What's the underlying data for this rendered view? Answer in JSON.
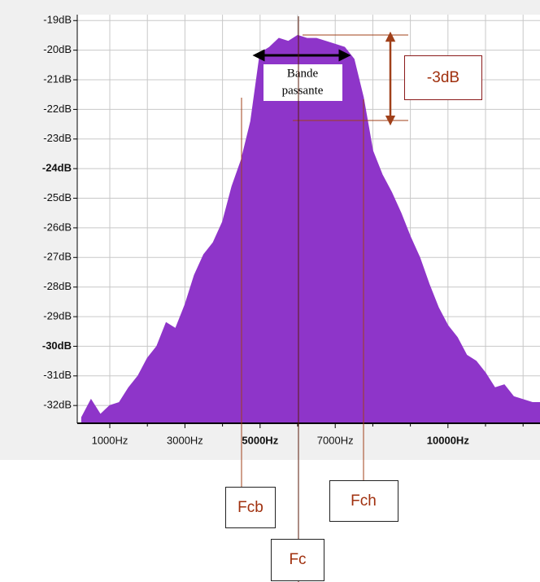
{
  "chart_data": {
    "type": "area",
    "color": "#8e35c9",
    "x": [
      250,
      500,
      750,
      1000,
      1250,
      1500,
      1750,
      2000,
      2250,
      2500,
      2750,
      3000,
      3250,
      3500,
      3750,
      4000,
      4250,
      4500,
      4750,
      5000,
      5250,
      5500,
      5750,
      6000,
      6250,
      6500,
      6750,
      7000,
      7250,
      7500,
      7750,
      8000,
      8250,
      8500,
      8750,
      9000,
      9250,
      9500,
      9750,
      10000,
      10250,
      10500,
      10750,
      11000,
      11250,
      11500,
      11750,
      12000,
      12250
    ],
    "values": [
      -32.4,
      -31.8,
      -32.3,
      -32.0,
      -31.9,
      -31.4,
      -31.0,
      -30.4,
      -30.0,
      -29.2,
      -29.4,
      -28.6,
      -27.6,
      -26.9,
      -26.5,
      -25.8,
      -24.6,
      -23.7,
      -22.4,
      -20.1,
      -19.9,
      -19.6,
      -19.7,
      -19.5,
      -19.6,
      -19.6,
      -19.7,
      -19.8,
      -19.9,
      -20.3,
      -21.6,
      -23.4,
      -24.2,
      -24.8,
      -25.5,
      -26.3,
      -27.0,
      -27.9,
      -28.7,
      -29.3,
      -29.7,
      -30.3,
      -30.5,
      -30.9,
      -31.4,
      -31.3,
      -31.7,
      -31.8,
      -31.9
    ],
    "xlim": [
      134,
      12450
    ],
    "ylim": [
      -32.6,
      -18.8
    ],
    "xticks": [
      {
        "value": 1000,
        "label": "1000Hz"
      },
      {
        "value": 3000,
        "label": "3000Hz"
      },
      {
        "value": 5000,
        "label": "5000Hz",
        "bold": true
      },
      {
        "value": 7000,
        "label": "7000Hz"
      },
      {
        "value": 10000,
        "label": "10000Hz",
        "bold": true
      }
    ],
    "minor_xticks": [
      2000,
      4000,
      6000,
      8000,
      9000,
      11000,
      12000
    ],
    "yticks": [
      {
        "value": -19,
        "label": "-19dB"
      },
      {
        "value": -20,
        "label": "-20dB"
      },
      {
        "value": -21,
        "label": "-21dB"
      },
      {
        "value": -22,
        "label": "-22dB"
      },
      {
        "value": -23,
        "label": "-23dB"
      },
      {
        "value": -24,
        "label": "-24dB",
        "bold": true
      },
      {
        "value": -25,
        "label": "-25dB"
      },
      {
        "value": -26,
        "label": "-26dB"
      },
      {
        "value": -27,
        "label": "-27dB"
      },
      {
        "value": -28,
        "label": "-28dB"
      },
      {
        "value": -29,
        "label": "-29dB"
      },
      {
        "value": -30,
        "label": "-30dB",
        "bold": true
      },
      {
        "value": -31,
        "label": "-31dB"
      },
      {
        "value": -32,
        "label": "-32dB"
      }
    ],
    "grid": true,
    "annotations": {
      "band": [
        "Bande",
        "passante"
      ],
      "attenuation": "-3dB",
      "fcb": "Fcb",
      "fc": "Fc",
      "fch": "Fch"
    }
  }
}
